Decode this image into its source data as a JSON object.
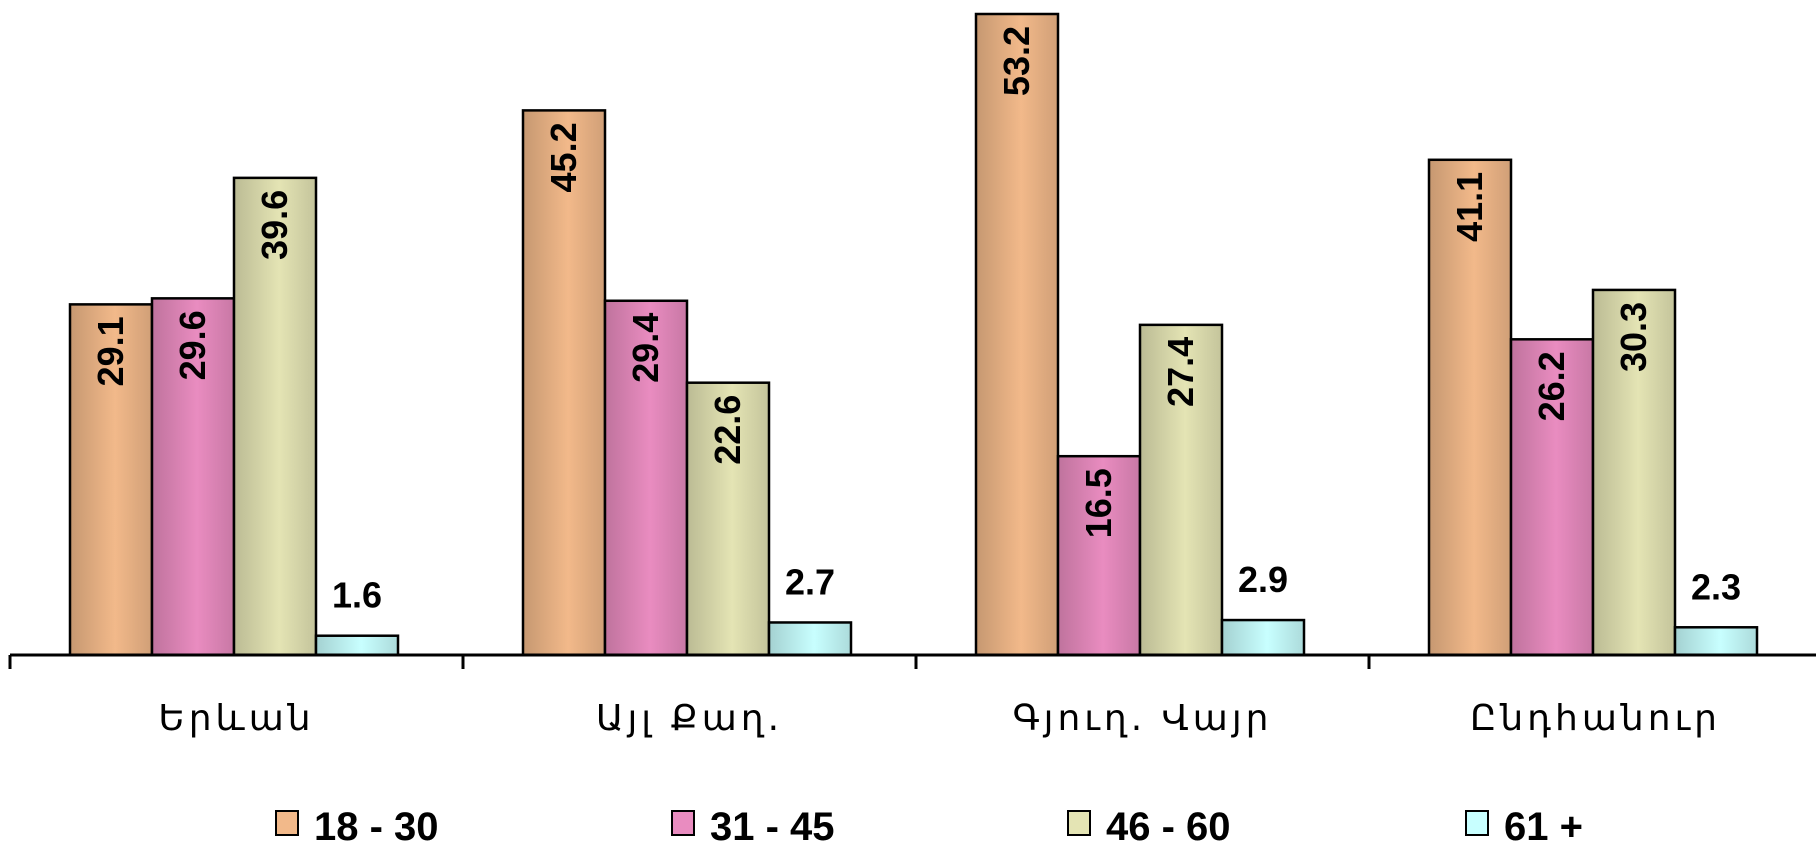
{
  "chart_data": {
    "type": "bar",
    "categories": [
      "Երևան",
      "Այլ Քաղ.",
      "Գյուղ. Վայր",
      "Ընդհանուր"
    ],
    "series": [
      {
        "name": "18 - 30",
        "values": [
          29.1,
          45.2,
          53.2,
          41.1
        ],
        "color": "#f2b98a"
      },
      {
        "name": "31 - 45",
        "values": [
          29.6,
          29.4,
          16.5,
          26.2
        ],
        "color": "#e98cc0"
      },
      {
        "name": "46 - 60",
        "values": [
          39.6,
          22.6,
          27.4,
          30.3
        ],
        "color": "#e4e4b4"
      },
      {
        "name": "61 +",
        "values": [
          1.6,
          2.7,
          2.9,
          2.3
        ],
        "color": "#c8ffff"
      }
    ],
    "ylim": [
      0,
      53.2
    ],
    "grid": false,
    "legend_position": "bottom",
    "title": "",
    "xlabel": "",
    "ylabel": ""
  }
}
